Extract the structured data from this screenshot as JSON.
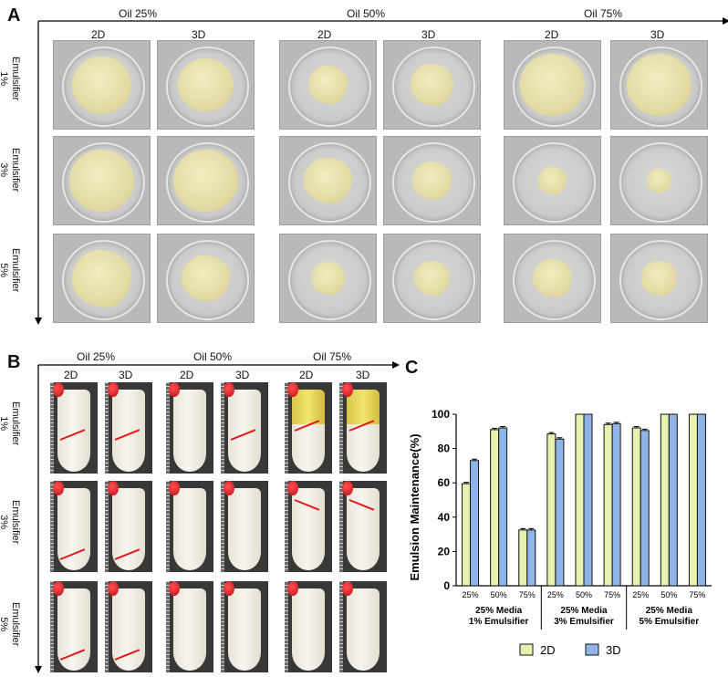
{
  "panel_a": {
    "letter": "A",
    "oil_headers": [
      "Oil 25%",
      "Oil 50%",
      "Oil 75%"
    ],
    "dim_headers": [
      "2D",
      "3D",
      "2D",
      "3D",
      "2D",
      "3D"
    ],
    "row_labels": [
      {
        "line1": "Emulsifier",
        "line2": "1%"
      },
      {
        "line1": "Emulsifier",
        "line2": "3%"
      },
      {
        "line1": "Emulsifier",
        "line2": "5%"
      }
    ]
  },
  "panel_b": {
    "letter": "B",
    "oil_headers": [
      "Oil 25%",
      "Oil 50%",
      "Oil 75%"
    ],
    "dim_headers": [
      "2D",
      "3D",
      "2D",
      "3D",
      "2D",
      "3D"
    ],
    "row_labels": [
      {
        "line1": "Emulsifier",
        "line2": "1%"
      },
      {
        "line1": "Emulsifier",
        "line2": "3%"
      },
      {
        "line1": "Emulsifier",
        "line2": "5%"
      }
    ]
  },
  "panel_c": {
    "letter": "C",
    "colors": {
      "2D": "#e8f2b0",
      "3D": "#8fb4e8",
      "edge": "#111111"
    }
  },
  "chart_data": {
    "type": "bar",
    "ylabel": "Emulsion Maintenance(%)",
    "ylim": [
      0,
      100
    ],
    "yticks": [
      0,
      20,
      40,
      60,
      80,
      100
    ],
    "categories": [
      "25%",
      "50%",
      "75%",
      "25%",
      "50%",
      "75%",
      "25%",
      "50%",
      "75%"
    ],
    "groups": [
      {
        "line1": "25% Media",
        "line2": "1%  Emulsifier"
      },
      {
        "line1": "25% Media",
        "line2": "3%  Emulsifier"
      },
      {
        "line1": "25% Media",
        "line2": "5%  Emulsifier"
      }
    ],
    "series": [
      {
        "name": "2D",
        "values": [
          59.5,
          91,
          32.5,
          88.5,
          100,
          94,
          92,
          100,
          100
        ],
        "errors": [
          0.8,
          0.8,
          0.8,
          0.8,
          0,
          0.8,
          0.8,
          0,
          0
        ]
      },
      {
        "name": "3D",
        "values": [
          73,
          92,
          32.5,
          85.5,
          100,
          94.5,
          90.5,
          100,
          100
        ],
        "errors": [
          0.8,
          0.8,
          0.8,
          0.8,
          0,
          0.8,
          0.8,
          0,
          0
        ]
      }
    ],
    "legend_position": "bottom"
  }
}
